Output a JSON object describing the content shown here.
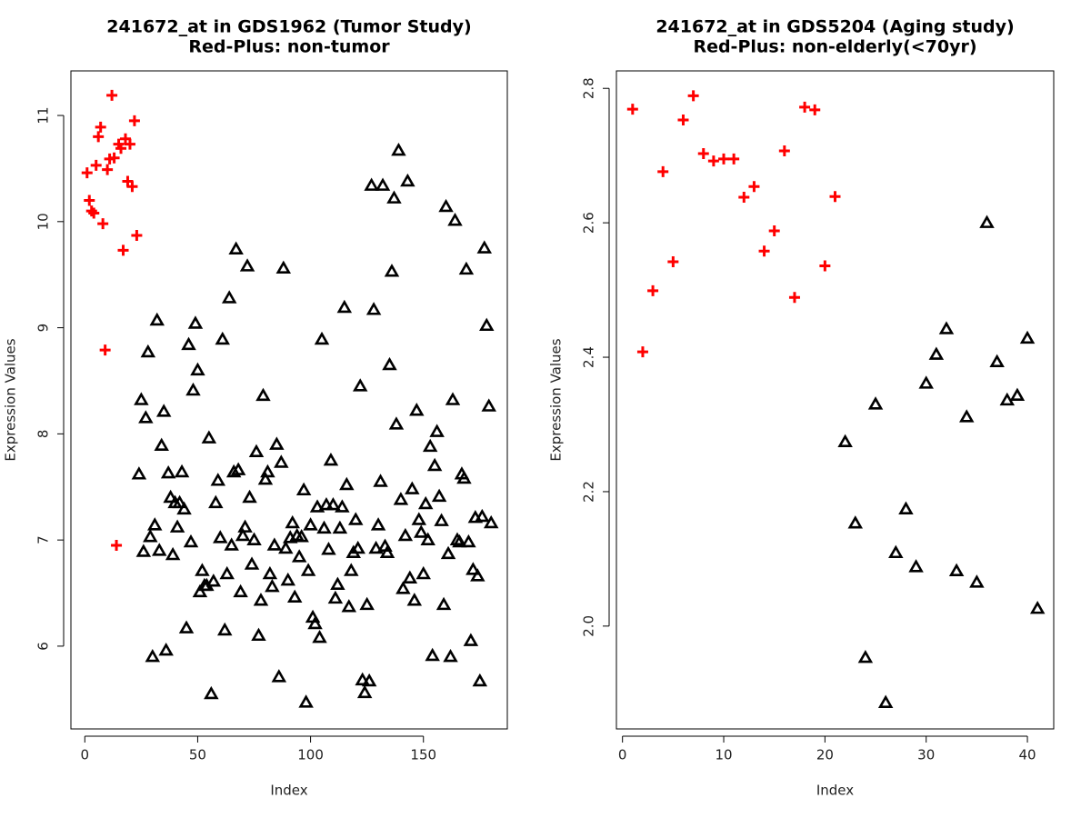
{
  "chart_data": [
    {
      "type": "scatter",
      "title": "241672_at in GDS1962 (Tumor Study)",
      "subtitle": "Red-Plus: non-tumor",
      "x_label": "Index",
      "y_label": "Expression Values",
      "xlim": [
        -6.16,
        187.16
      ],
      "ylim": [
        5.22,
        11.42
      ],
      "xticks": [
        0,
        50,
        100,
        150
      ],
      "yticks": [
        6,
        7,
        8,
        9,
        10,
        11
      ],
      "series": [
        {
          "color": "#ff0000",
          "marker": "plus",
          "x": [
            1,
            2,
            3,
            4,
            5,
            6,
            7,
            8,
            9,
            10,
            11,
            12,
            13,
            14,
            15,
            16,
            17,
            18,
            19,
            20,
            21,
            22,
            23
          ],
          "values": [
            10.46,
            10.2,
            10.1,
            10.08,
            10.53,
            10.8,
            10.89,
            9.98,
            8.79,
            10.49,
            10.59,
            11.19,
            10.6,
            6.95,
            10.73,
            10.69,
            9.73,
            10.78,
            10.38,
            10.73,
            10.33,
            10.95,
            9.87
          ]
        },
        {
          "color": "#000000",
          "marker": "triangle",
          "x": [
            24,
            25,
            26,
            27,
            28,
            29,
            30,
            31,
            32,
            33,
            34,
            35,
            36,
            37,
            38,
            39,
            40,
            41,
            42,
            43,
            44,
            45,
            46,
            47,
            48,
            49,
            50,
            51,
            52,
            53,
            54,
            55,
            56,
            57,
            58,
            59,
            60,
            61,
            62,
            63,
            64,
            65,
            66,
            67,
            68,
            69,
            70,
            71,
            72,
            73,
            74,
            75,
            76,
            77,
            78,
            79,
            80,
            81,
            82,
            83,
            84,
            85,
            86,
            87,
            88,
            89,
            90,
            91,
            92,
            93,
            94,
            95,
            96,
            97,
            98,
            99,
            100,
            101,
            102,
            103,
            104,
            105,
            106,
            107,
            108,
            109,
            110,
            111,
            112,
            113,
            114,
            115,
            116,
            117,
            118,
            119,
            120,
            121,
            122,
            123,
            124,
            125,
            126,
            127,
            128,
            129,
            130,
            131,
            132,
            133,
            134,
            135,
            136,
            137,
            138,
            139,
            140,
            141,
            142,
            143,
            144,
            145,
            146,
            147,
            148,
            149,
            150,
            151,
            152,
            153,
            154,
            155,
            156,
            157,
            158,
            159,
            160,
            161,
            162,
            163,
            164,
            165,
            166,
            167,
            168,
            169,
            170,
            171,
            172,
            173,
            174,
            175,
            176,
            177,
            178,
            179,
            180
          ],
          "values": [
            7.62,
            8.32,
            6.89,
            8.15,
            8.77,
            7.03,
            5.9,
            7.14,
            9.07,
            6.9,
            7.89,
            8.21,
            5.96,
            7.63,
            7.4,
            6.86,
            7.35,
            7.12,
            7.35,
            7.64,
            7.29,
            6.17,
            8.84,
            6.98,
            8.41,
            9.04,
            8.6,
            6.51,
            6.71,
            6.57,
            6.57,
            7.96,
            5.55,
            6.61,
            7.35,
            7.56,
            7.02,
            8.89,
            6.15,
            6.68,
            9.28,
            6.95,
            7.64,
            9.74,
            7.66,
            6.51,
            7.04,
            7.12,
            9.58,
            7.4,
            6.77,
            7.0,
            7.83,
            6.1,
            6.43,
            8.36,
            7.57,
            7.64,
            6.68,
            6.56,
            6.95,
            7.9,
            5.71,
            7.73,
            9.56,
            6.92,
            6.62,
            7.02,
            7.16,
            6.46,
            7.04,
            6.84,
            7.03,
            7.47,
            5.47,
            6.71,
            7.14,
            6.27,
            6.21,
            7.31,
            6.08,
            8.89,
            7.11,
            7.33,
            6.91,
            7.75,
            7.33,
            6.45,
            6.58,
            7.11,
            7.31,
            9.19,
            7.52,
            6.37,
            6.71,
            6.88,
            7.19,
            6.92,
            8.45,
            5.68,
            5.56,
            6.39,
            5.67,
            10.34,
            9.17,
            6.92,
            7.14,
            7.55,
            10.34,
            6.94,
            6.88,
            8.65,
            9.53,
            10.22,
            8.09,
            10.67,
            7.38,
            6.54,
            7.04,
            10.38,
            6.64,
            7.48,
            6.43,
            8.22,
            7.19,
            7.07,
            6.68,
            7.34,
            7.0,
            7.88,
            5.91,
            7.7,
            8.02,
            7.41,
            7.18,
            6.39,
            10.14,
            6.87,
            5.9,
            8.32,
            10.01,
            7.0,
            6.98,
            7.62,
            7.58,
            9.55,
            6.98,
            6.05,
            6.72,
            7.21,
            6.66,
            5.67,
            7.22,
            9.75,
            9.02,
            8.26,
            7.16
          ]
        }
      ]
    },
    {
      "type": "scatter",
      "title": "241672_at in GDS5204 (Aging study)",
      "subtitle": "Red-Plus: non-elderly(<70yr)",
      "x_label": "Index",
      "y_label": "Expression Values",
      "xlim": [
        -0.6,
        42.6
      ],
      "ylim": [
        1.847,
        2.826
      ],
      "xticks": [
        0,
        10,
        20,
        30,
        40
      ],
      "yticks": [
        {
          "value": 2,
          "label": "2.0"
        },
        2.2,
        2.4,
        2.6,
        2.8
      ],
      "series": [
        {
          "color": "#ff0000",
          "marker": "plus",
          "x": [
            1,
            2,
            3,
            4,
            5,
            6,
            7,
            8,
            9,
            10,
            11,
            12,
            13,
            14,
            15,
            16,
            17,
            18,
            19,
            20,
            21
          ],
          "values": [
            2.769,
            2.408,
            2.499,
            2.676,
            2.542,
            2.753,
            2.789,
            2.703,
            2.692,
            2.695,
            2.695,
            2.638,
            2.654,
            2.558,
            2.588,
            2.707,
            2.489,
            2.772,
            2.768,
            2.536,
            2.639
          ]
        },
        {
          "color": "#000000",
          "marker": "triangle",
          "x": [
            22,
            23,
            24,
            25,
            26,
            27,
            28,
            29,
            30,
            31,
            32,
            33,
            34,
            35,
            36,
            37,
            38,
            39,
            40,
            41
          ],
          "values": [
            2.274,
            2.153,
            1.953,
            2.33,
            1.886,
            2.109,
            2.174,
            2.088,
            2.361,
            2.404,
            2.442,
            2.082,
            2.311,
            2.065,
            2.6,
            2.393,
            2.336,
            2.343,
            2.428,
            2.026
          ]
        }
      ]
    }
  ]
}
